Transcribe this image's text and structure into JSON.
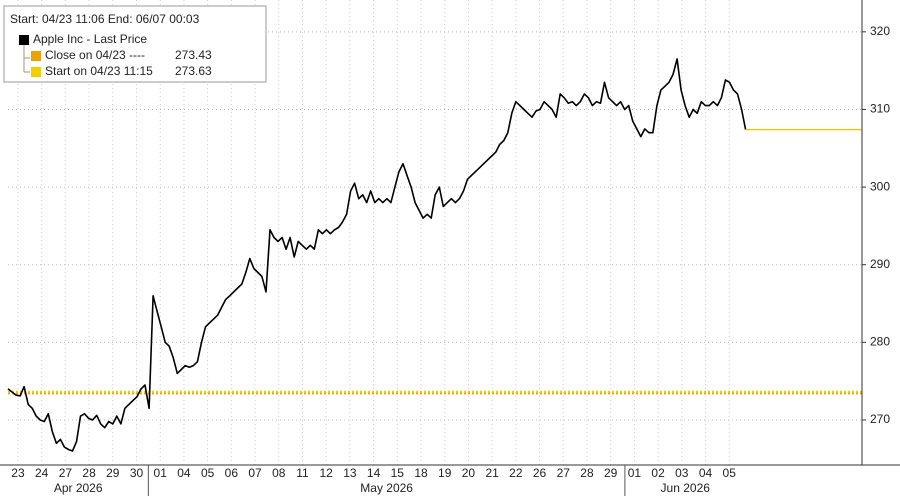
{
  "chart_data": {
    "type": "line",
    "subtitle": "Start: 04/23 11:06 End: 06/07 00:03",
    "xlim": [
      -0.42,
      35.6
    ],
    "ylim": [
      264.2,
      324.1
    ],
    "yticks": [
      270,
      280,
      290,
      300,
      310,
      320
    ],
    "grid": true,
    "xticks": [
      {
        "value": 0,
        "label": "23"
      },
      {
        "value": 1,
        "label": "24"
      },
      {
        "value": 2,
        "label": "27"
      },
      {
        "value": 3,
        "label": "28"
      },
      {
        "value": 4,
        "label": "29"
      },
      {
        "value": 5,
        "label": "30"
      },
      {
        "value": 6,
        "label": "01"
      },
      {
        "value": 7,
        "label": "04"
      },
      {
        "value": 8,
        "label": "05"
      },
      {
        "value": 9,
        "label": "06"
      },
      {
        "value": 10,
        "label": "07"
      },
      {
        "value": 11,
        "label": "08"
      },
      {
        "value": 12,
        "label": "11"
      },
      {
        "value": 13,
        "label": "12"
      },
      {
        "value": 14,
        "label": "13"
      },
      {
        "value": 15,
        "label": "14"
      },
      {
        "value": 16,
        "label": "15"
      },
      {
        "value": 17,
        "label": "18"
      },
      {
        "value": 18,
        "label": "19"
      },
      {
        "value": 19,
        "label": "20"
      },
      {
        "value": 20,
        "label": "21"
      },
      {
        "value": 21,
        "label": "22"
      },
      {
        "value": 22,
        "label": "26"
      },
      {
        "value": 23,
        "label": "27"
      },
      {
        "value": 24,
        "label": "28"
      },
      {
        "value": 25,
        "label": "29"
      },
      {
        "value": 26,
        "label": "01"
      },
      {
        "value": 27,
        "label": "02"
      },
      {
        "value": 28,
        "label": "03"
      },
      {
        "value": 29,
        "label": "04"
      },
      {
        "value": 30,
        "label": "05"
      }
    ],
    "periods": [
      {
        "label": "Apr 2026",
        "start": -0.42,
        "end": 5.5
      },
      {
        "label": "May 2026",
        "start": 5.5,
        "end": 25.6
      },
      {
        "label": "Jun 2026",
        "start": 25.6,
        "end": 30.69
      }
    ],
    "series": [
      {
        "name": "Apple Inc - Last Price",
        "color": "#000000",
        "x": [
          -0.42,
          -0.25,
          -0.08,
          0.09,
          0.26,
          0.43,
          0.6,
          0.77,
          0.94,
          1.11,
          1.28,
          1.45,
          1.62,
          1.79,
          1.96,
          2.13,
          2.3,
          2.47,
          2.64,
          2.81,
          2.98,
          3.15,
          3.32,
          3.49,
          3.66,
          3.83,
          4,
          4.17,
          4.34,
          4.51,
          4.68,
          4.85,
          5.02,
          5.19,
          5.36,
          5.53,
          5.7,
          5.87,
          6.04,
          6.21,
          6.38,
          6.55,
          6.72,
          6.89,
          7.06,
          7.23,
          7.4,
          7.57,
          7.74,
          7.91,
          8.08,
          8.25,
          8.42,
          8.59,
          8.76,
          8.93,
          9.1,
          9.27,
          9.44,
          9.61,
          9.78,
          9.95,
          10.12,
          10.29,
          10.46,
          10.63,
          10.8,
          10.97,
          11.14,
          11.31,
          11.48,
          11.65,
          11.82,
          11.99,
          12.16,
          12.33,
          12.5,
          12.67,
          12.84,
          13.01,
          13.18,
          13.35,
          13.52,
          13.69,
          13.86,
          14.03,
          14.2,
          14.37,
          14.54,
          14.71,
          14.88,
          15.05,
          15.22,
          15.39,
          15.56,
          15.73,
          15.9,
          16.07,
          16.24,
          16.41,
          16.58,
          16.75,
          16.92,
          17.09,
          17.26,
          17.43,
          17.6,
          17.77,
          17.94,
          18.11,
          18.28,
          18.45,
          18.62,
          18.79,
          18.96,
          19.13,
          19.3,
          19.47,
          19.64,
          19.81,
          19.98,
          20.15,
          20.32,
          20.49,
          20.66,
          20.83,
          21,
          21.17,
          21.34,
          21.51,
          21.68,
          21.85,
          22.02,
          22.19,
          22.36,
          22.53,
          22.7,
          22.87,
          23.04,
          23.21,
          23.38,
          23.55,
          23.72,
          23.89,
          24.06,
          24.23,
          24.4,
          24.57,
          24.74,
          24.91,
          25.08,
          25.25,
          25.42,
          25.59,
          25.76,
          25.93,
          26.1,
          26.27,
          26.44,
          26.61,
          26.78,
          26.95,
          27.12,
          27.29,
          27.46,
          27.63,
          27.8,
          27.97,
          28.14,
          28.31,
          28.48,
          28.65,
          28.82,
          28.99,
          29.16,
          29.33,
          29.5,
          29.67,
          29.84,
          30.01,
          30.18,
          30.35,
          30.52,
          30.69
        ],
        "values": [
          274.0,
          273.6,
          273.2,
          273.1,
          274.3,
          272.0,
          271.5,
          270.5,
          270.0,
          269.8,
          270.8,
          268.5,
          267.0,
          267.5,
          266.5,
          266.2,
          266.0,
          267.2,
          270.5,
          270.8,
          270.2,
          270.0,
          270.6,
          269.5,
          269.0,
          269.8,
          269.5,
          270.5,
          269.5,
          271.5,
          272.0,
          272.5,
          273.0,
          274.0,
          274.5,
          271.5,
          286.0,
          284.0,
          282.0,
          280.0,
          279.5,
          278.0,
          276.0,
          276.5,
          277.0,
          276.8,
          277.0,
          277.5,
          280.0,
          282.0,
          282.5,
          283.0,
          283.5,
          284.5,
          285.5,
          286.0,
          286.5,
          287.0,
          287.5,
          289.0,
          290.8,
          289.5,
          289.0,
          288.5,
          286.5,
          294.5,
          293.5,
          293.0,
          293.5,
          292.0,
          293.5,
          291.0,
          293.0,
          292.5,
          292.0,
          292.5,
          292.0,
          294.5,
          294.0,
          294.5,
          294.0,
          294.5,
          294.8,
          295.5,
          296.5,
          299.5,
          300.5,
          298.5,
          299.0,
          298.0,
          299.5,
          298.0,
          298.5,
          298.0,
          298.5,
          298.0,
          300.0,
          302.0,
          303.0,
          301.5,
          300.0,
          298.0,
          297.0,
          296.0,
          296.5,
          296.0,
          299.0,
          300.0,
          297.5,
          298.0,
          298.5,
          298.0,
          298.5,
          299.5,
          301.0,
          301.5,
          302.0,
          302.5,
          303.0,
          303.5,
          304.0,
          304.5,
          305.5,
          306.0,
          307.0,
          309.5,
          311.0,
          310.5,
          310.0,
          309.5,
          309.0,
          309.8,
          310.0,
          311.0,
          310.5,
          310.0,
          309.0,
          312.0,
          311.5,
          310.8,
          311.0,
          310.5,
          311.0,
          312.0,
          311.5,
          310.5,
          311.0,
          310.8,
          313.5,
          311.5,
          311.0,
          310.5,
          311.0,
          310.0,
          310.5,
          308.5,
          307.5,
          306.5,
          307.5,
          307.0,
          307.0,
          310.5,
          312.5,
          313.0,
          313.5,
          314.5,
          316.5,
          312.5,
          310.5,
          309.0,
          310.0,
          309.5,
          311.0,
          310.5,
          310.5,
          311.0,
          310.5,
          311.5,
          313.8,
          313.5,
          312.5,
          312.0,
          310.0,
          307.4
        ]
      }
    ],
    "tail": {
      "color": "#f5c400",
      "x": [
        30.69,
        35.6
      ],
      "values": [
        307.4,
        307.4
      ]
    },
    "ref_lines": [
      {
        "label": "Close on 04/23 ----",
        "value": 273.43,
        "color": "#f0a000"
      },
      {
        "label": "Start on 04/23 11:15",
        "value": 273.63,
        "color": "#f5d000"
      }
    ]
  }
}
